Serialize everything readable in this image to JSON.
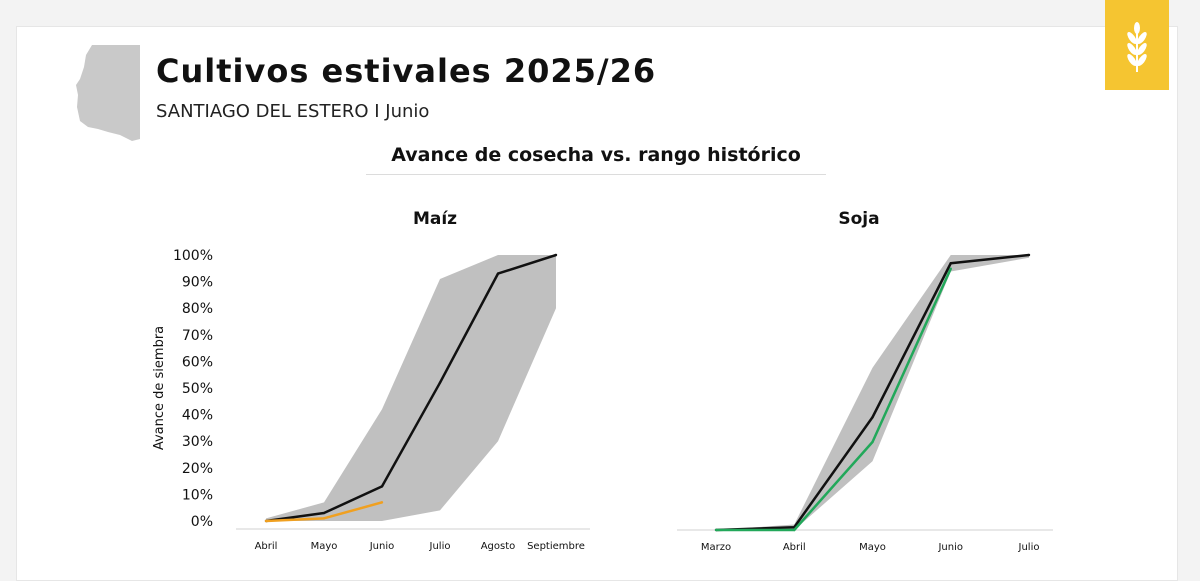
{
  "header": {
    "title": "Cultivos estivales 2025/26",
    "subtitle": "SANTIAGO DEL ESTERO I Junio",
    "section_title": "Avance de cosecha vs. rango histórico",
    "logo_icon": "wheat-icon",
    "logo_color": "#f5c531",
    "province_icon": "province-map-icon"
  },
  "chart_data": [
    {
      "type": "area",
      "title": "Maíz",
      "ylabel": "Avance de siembra",
      "xlabel": "",
      "categories": [
        "Abril",
        "Mayo",
        "Junio",
        "Julio",
        "Agosto",
        "Septiembre"
      ],
      "yticks": [
        "0%",
        "10%",
        "20%",
        "30%",
        "40%",
        "50%",
        "60%",
        "70%",
        "80%",
        "90%",
        "100%"
      ],
      "ylim": [
        0,
        100
      ],
      "range_band": {
        "color": "#c0c0c0",
        "min": [
          0,
          0,
          0,
          4,
          30,
          80
        ],
        "max": [
          1,
          7,
          42,
          91,
          100,
          100
        ]
      },
      "series": [
        {
          "color": "#111111",
          "values": [
            0,
            3,
            13,
            52,
            93,
            100
          ]
        },
        {
          "color": "#f0a020",
          "values": [
            0,
            1,
            7,
            null,
            null,
            null
          ]
        }
      ],
      "grid": false
    },
    {
      "type": "area",
      "title": "Soja",
      "ylabel": "",
      "xlabel": "",
      "categories": [
        "Marzo",
        "Abril",
        "Mayo",
        "Junio",
        "Julio"
      ],
      "ylim": [
        0,
        100
      ],
      "range_band": {
        "color": "#c0c0c0",
        "min": [
          0,
          0,
          25,
          94,
          99
        ],
        "max": [
          0,
          2,
          59,
          100,
          100
        ]
      },
      "series": [
        {
          "color": "#111111",
          "values": [
            0,
            1,
            41,
            97,
            100
          ]
        },
        {
          "color": "#22a85a",
          "values": [
            0,
            0,
            32,
            95,
            null
          ]
        }
      ],
      "grid": false
    }
  ]
}
